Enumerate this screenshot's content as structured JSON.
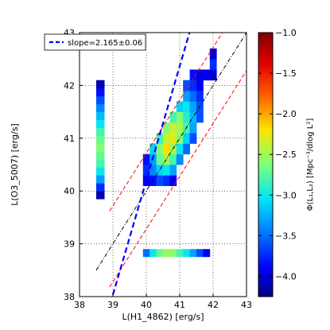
{
  "chart_data": {
    "type": "heatmap",
    "xlabel": "L(H1_4862) [erg/s]",
    "ylabel": "L(O3_5007) [erg/s]",
    "xlim": [
      38,
      43
    ],
    "ylim": [
      38,
      43
    ],
    "xticks": [
      "38",
      "39",
      "40",
      "41",
      "42",
      "43"
    ],
    "yticks": [
      "38",
      "39",
      "40",
      "41",
      "42",
      "43"
    ],
    "grid": true,
    "legend": {
      "position": "top-left",
      "entry": "slope=2.165±0.06"
    },
    "colorbar": {
      "label": "Φ(L₁,L₂) [Mpc⁻³/dlog L²]",
      "range": [
        -4.25,
        -1.0
      ],
      "ticks": [
        "−1.0",
        "−1.5",
        "−2.0",
        "−2.5",
        "−3.0",
        "−3.5",
        "−4.0"
      ],
      "colors": [
        "#00007f",
        "#0000ff",
        "#0080ff",
        "#00e4f8",
        "#7dff7a",
        "#fae600",
        "#ff6a00",
        "#e40000",
        "#7f0000"
      ]
    },
    "fit_line": {
      "slope": 2.165,
      "intercept": -46.4,
      "style": "blue-dashed"
    },
    "reference_lines": [
      {
        "slope": 1.0,
        "intercept": 0.0,
        "style": "black-dashdot",
        "x": [
          38.5,
          43
        ]
      },
      {
        "slope": 1.0,
        "intercept": 0.72,
        "style": "red-dashed",
        "x": [
          38.9,
          42.3
        ]
      },
      {
        "slope": 1.0,
        "intercept": -0.72,
        "style": "red-dashed",
        "x": [
          38.9,
          43
        ]
      }
    ],
    "main_cells": [
      [
        39.9,
        40.1,
        -3.9
      ],
      [
        40.1,
        40.1,
        -3.8
      ],
      [
        40.3,
        40.1,
        -3.6
      ],
      [
        40.5,
        40.1,
        -3.7
      ],
      [
        40.7,
        40.1,
        -3.9
      ],
      [
        39.9,
        40.3,
        -3.7
      ],
      [
        40.1,
        40.3,
        -3.4
      ],
      [
        40.3,
        40.3,
        -3.1
      ],
      [
        40.5,
        40.3,
        -3.0
      ],
      [
        40.7,
        40.3,
        -3.3
      ],
      [
        39.9,
        40.5,
        -3.8
      ],
      [
        40.1,
        40.5,
        -3.3
      ],
      [
        40.3,
        40.5,
        -2.7
      ],
      [
        40.5,
        40.5,
        -2.5
      ],
      [
        40.7,
        40.5,
        -2.8
      ],
      [
        40.9,
        40.5,
        -3.4
      ],
      [
        40.1,
        40.7,
        -3.1
      ],
      [
        40.3,
        40.7,
        -2.6
      ],
      [
        40.5,
        40.7,
        -2.2
      ],
      [
        40.7,
        40.7,
        -2.5
      ],
      [
        40.9,
        40.7,
        -3.0
      ],
      [
        41.1,
        40.7,
        -3.5
      ],
      [
        40.3,
        40.9,
        -2.8
      ],
      [
        40.5,
        40.9,
        -2.4
      ],
      [
        40.7,
        40.9,
        -2.3
      ],
      [
        40.9,
        40.9,
        -2.6
      ],
      [
        41.1,
        40.9,
        -3.1
      ],
      [
        41.3,
        40.9,
        -3.6
      ],
      [
        40.5,
        41.1,
        -2.6
      ],
      [
        40.7,
        41.1,
        -2.4
      ],
      [
        40.9,
        41.1,
        -2.5
      ],
      [
        41.1,
        41.1,
        -2.8
      ],
      [
        41.3,
        41.1,
        -3.3
      ],
      [
        40.7,
        41.3,
        -2.8
      ],
      [
        40.9,
        41.3,
        -2.6
      ],
      [
        41.1,
        41.3,
        -2.9
      ],
      [
        41.3,
        41.3,
        -3.2
      ],
      [
        41.5,
        41.3,
        -3.6
      ],
      [
        40.9,
        41.5,
        -3.1
      ],
      [
        41.1,
        41.5,
        -3.0
      ],
      [
        41.3,
        41.5,
        -3.3
      ],
      [
        41.5,
        41.5,
        -3.6
      ],
      [
        41.1,
        41.7,
        -3.3
      ],
      [
        41.3,
        41.7,
        -3.5
      ],
      [
        41.5,
        41.7,
        -3.7
      ],
      [
        41.1,
        41.9,
        -3.6
      ],
      [
        41.3,
        41.9,
        -3.7
      ],
      [
        41.5,
        41.9,
        -3.9
      ],
      [
        41.3,
        42.1,
        -3.8
      ],
      [
        41.5,
        42.1,
        -3.9
      ],
      [
        41.7,
        42.1,
        -3.9
      ],
      [
        41.9,
        42.1,
        -4.0
      ],
      [
        41.9,
        42.3,
        -3.7
      ],
      [
        41.9,
        42.5,
        -4.0
      ]
    ],
    "y_marginal": {
      "x_range": [
        38.5,
        38.75
      ],
      "cells": [
        [
          39.85,
          40.0,
          -4.1
        ],
        [
          40.0,
          40.15,
          -3.7
        ],
        [
          40.15,
          40.3,
          -3.3
        ],
        [
          40.3,
          40.45,
          -3.0
        ],
        [
          40.45,
          40.6,
          -2.8
        ],
        [
          40.6,
          40.75,
          -2.7
        ],
        [
          40.75,
          40.9,
          -2.6
        ],
        [
          40.9,
          41.05,
          -2.7
        ],
        [
          41.05,
          41.2,
          -2.8
        ],
        [
          41.2,
          41.35,
          -3.0
        ],
        [
          41.35,
          41.5,
          -3.2
        ],
        [
          41.5,
          41.65,
          -3.4
        ],
        [
          41.65,
          41.8,
          -3.6
        ],
        [
          41.8,
          41.95,
          -3.8
        ],
        [
          41.95,
          42.1,
          -4.1
        ]
      ]
    },
    "x_marginal": {
      "y_range": [
        38.75,
        38.9
      ],
      "cells": [
        [
          39.9,
          40.1,
          -3.5
        ],
        [
          40.1,
          40.3,
          -3.0
        ],
        [
          40.3,
          40.5,
          -2.7
        ],
        [
          40.5,
          40.7,
          -2.5
        ],
        [
          40.7,
          40.9,
          -2.6
        ],
        [
          40.9,
          41.1,
          -2.8
        ],
        [
          41.1,
          41.3,
          -3.0
        ],
        [
          41.3,
          41.5,
          -3.3
        ],
        [
          41.5,
          41.7,
          -3.6
        ],
        [
          41.7,
          41.9,
          -3.9
        ]
      ]
    }
  }
}
